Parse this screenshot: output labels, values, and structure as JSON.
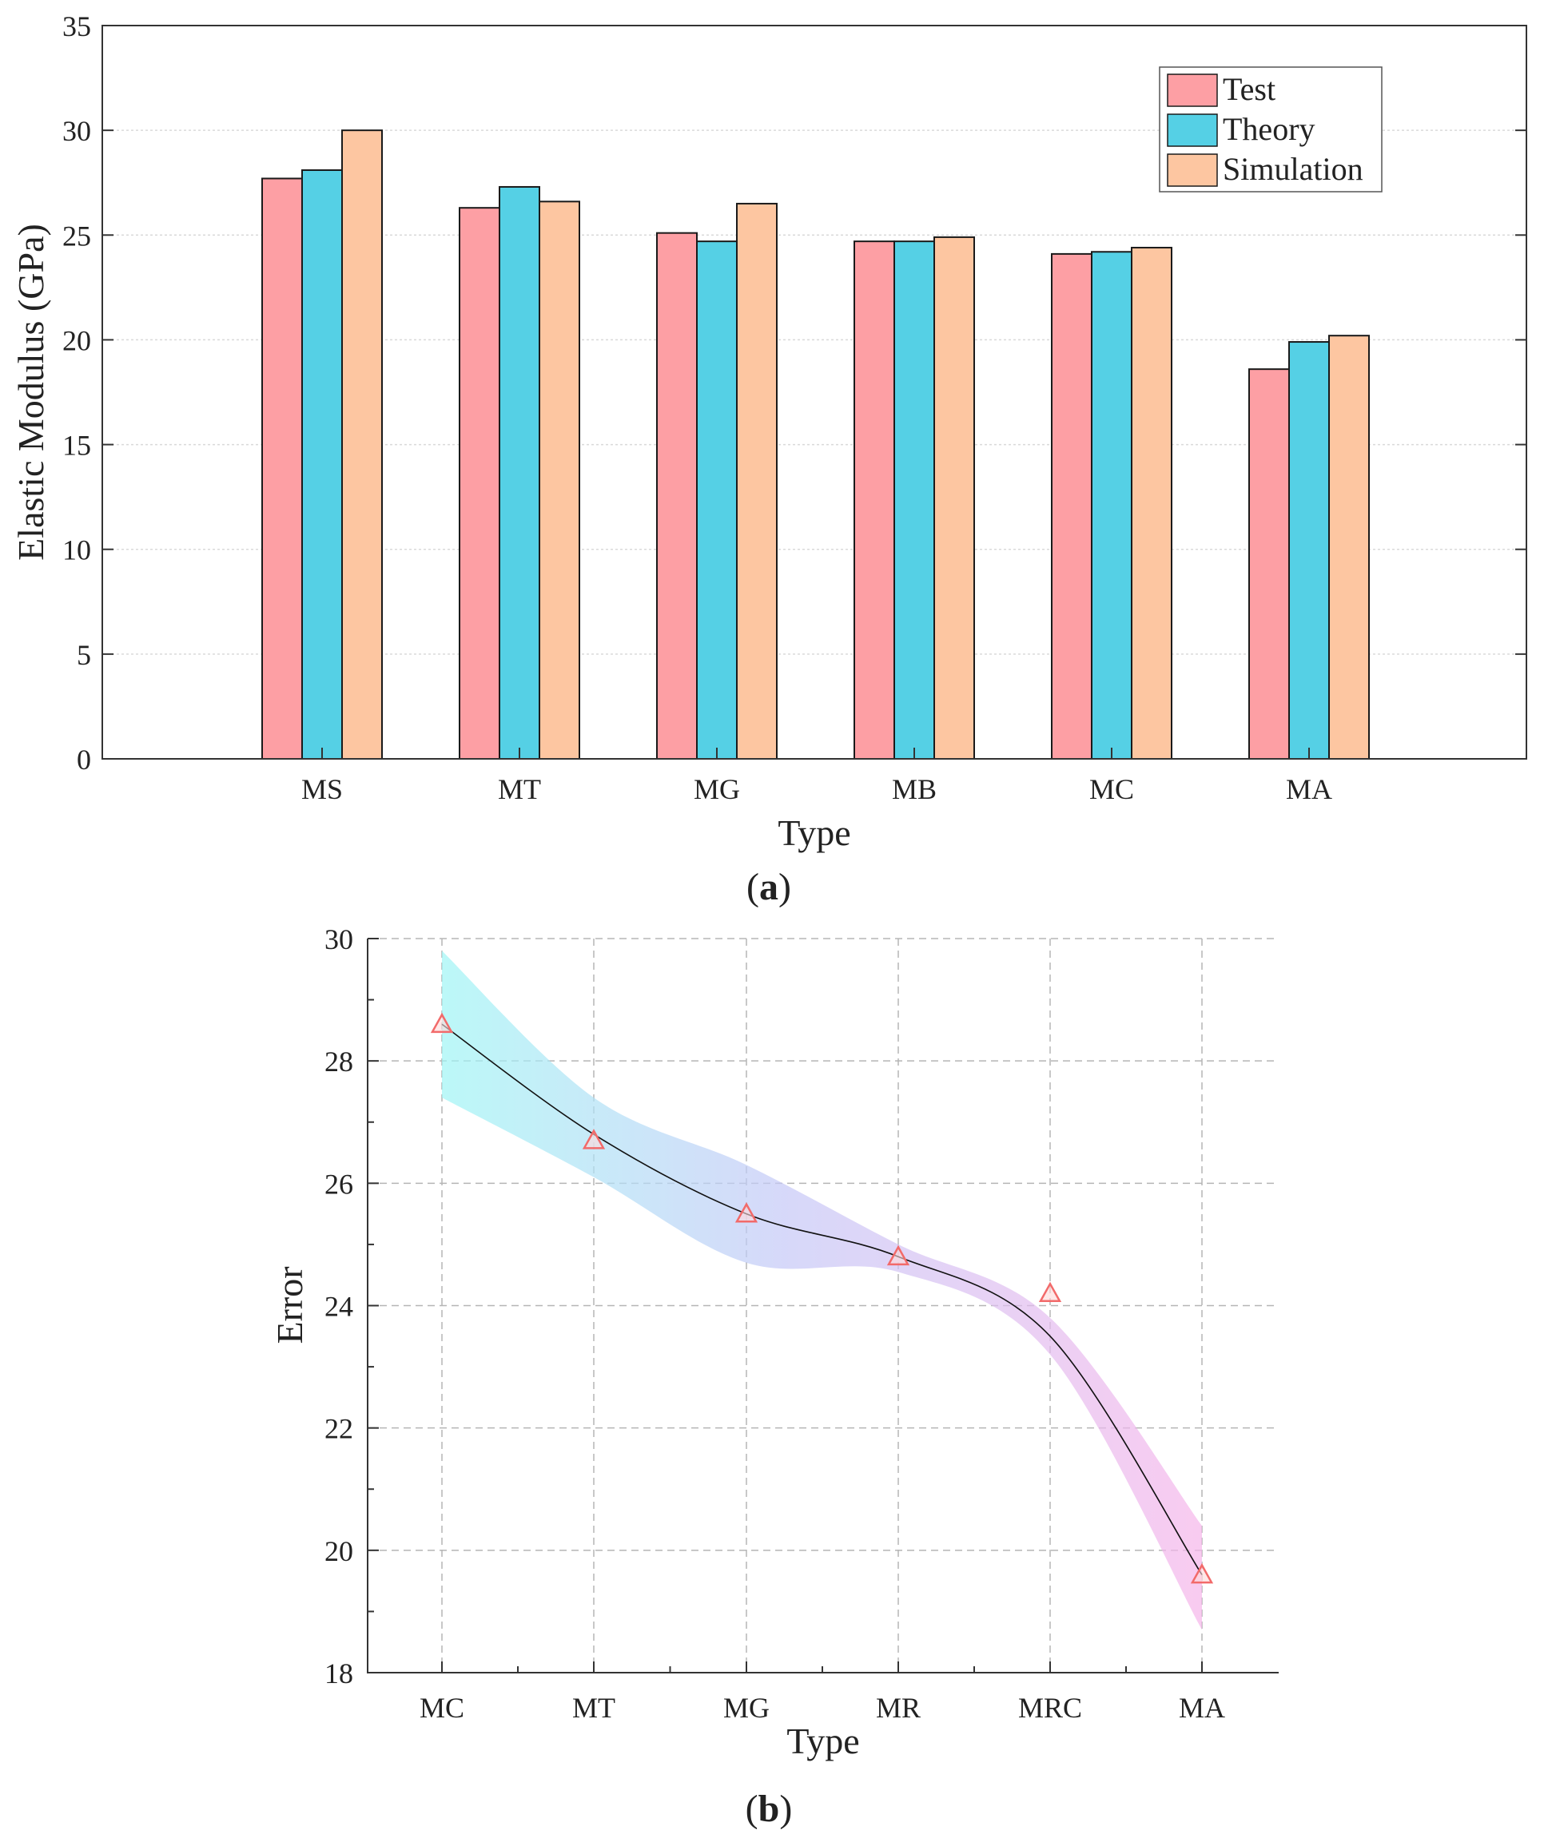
{
  "chart_data": [
    {
      "type": "bar",
      "panel_label": "a",
      "title": "",
      "xlabel": "Type",
      "ylabel": "Elastic Modulus (GPa)",
      "ylim": [
        0,
        35
      ],
      "yticks": [
        0,
        5,
        10,
        15,
        20,
        25,
        30,
        35
      ],
      "grid": true,
      "legend_position": "top-right",
      "categories": [
        "MS",
        "MT",
        "MG",
        "MB",
        "MC",
        "MA"
      ],
      "series": [
        {
          "name": "Test",
          "color": "#fd9fa4",
          "values": [
            27.7,
            26.3,
            25.1,
            24.7,
            24.1,
            18.6
          ]
        },
        {
          "name": "Theory",
          "color": "#55d0e5",
          "values": [
            28.1,
            27.3,
            24.7,
            24.7,
            24.2,
            19.9
          ]
        },
        {
          "name": "Simulation",
          "color": "#fdc6a1",
          "values": [
            30.0,
            26.6,
            26.5,
            24.9,
            24.4,
            20.2
          ]
        }
      ]
    },
    {
      "type": "line",
      "panel_label": "b",
      "title": "",
      "xlabel": "Type",
      "ylabel": "Error",
      "ylim": [
        18,
        30
      ],
      "yticks": [
        18,
        20,
        22,
        24,
        26,
        28,
        30
      ],
      "grid": true,
      "categories": [
        "MC",
        "MT",
        "MG",
        "MR",
        "MRC",
        "MA"
      ],
      "points": [
        28.6,
        26.7,
        25.5,
        24.8,
        24.2,
        19.6
      ],
      "fit_curve": [
        28.6,
        26.8,
        25.5,
        24.8,
        23.5,
        19.6
      ],
      "confidence_band": {
        "upper": [
          29.8,
          27.4,
          26.3,
          25.0,
          23.8,
          20.4
        ],
        "lower": [
          27.4,
          26.1,
          24.7,
          24.55,
          23.2,
          18.7
        ]
      },
      "marker_color": "#f26a6a",
      "line_color": "#111111",
      "band_colors": [
        "#9ff5f5",
        "#c5c8f7",
        "#f6b5ea"
      ]
    }
  ]
}
